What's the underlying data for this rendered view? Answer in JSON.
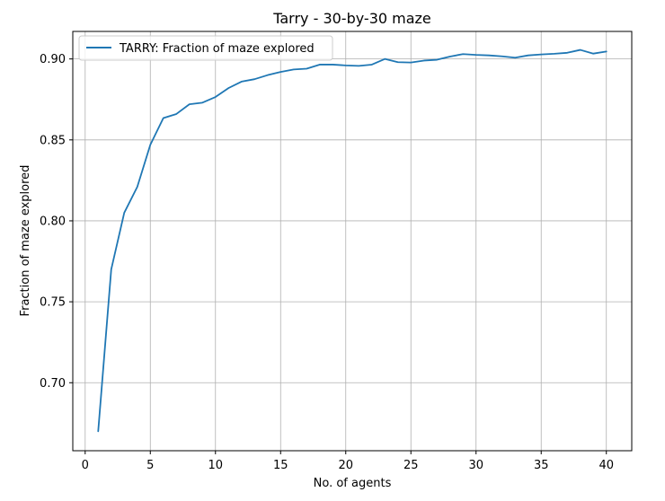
{
  "chart_data": {
    "type": "line",
    "title": "Tarry - 30-by-30 maze",
    "xlabel": "No. of agents",
    "ylabel": "Fraction of maze explored",
    "xlim": [
      -0.95,
      41.95
    ],
    "ylim": [
      0.658,
      0.917
    ],
    "xticks": [
      0,
      5,
      10,
      15,
      20,
      25,
      30,
      35,
      40
    ],
    "xtick_labels": [
      "0",
      "5",
      "10",
      "15",
      "20",
      "25",
      "30",
      "35",
      "40"
    ],
    "yticks": [
      0.7,
      0.75,
      0.8,
      0.85,
      0.9
    ],
    "ytick_labels": [
      "0.70",
      "0.75",
      "0.80",
      "0.85",
      "0.90"
    ],
    "grid": true,
    "legend_position": "upper-left",
    "series": [
      {
        "name": "TARRY: Fraction of maze explored",
        "color": "#1f77b4",
        "x": [
          1,
          2,
          3,
          4,
          5,
          6,
          7,
          8,
          9,
          10,
          11,
          12,
          13,
          14,
          15,
          16,
          17,
          18,
          19,
          20,
          21,
          22,
          23,
          24,
          25,
          26,
          27,
          28,
          29,
          30,
          31,
          32,
          33,
          34,
          35,
          36,
          37,
          38,
          39,
          40
        ],
        "y": [
          0.67,
          0.77,
          0.805,
          0.821,
          0.847,
          0.8635,
          0.866,
          0.872,
          0.873,
          0.8765,
          0.882,
          0.886,
          0.8875,
          0.89,
          0.892,
          0.8935,
          0.894,
          0.8965,
          0.8965,
          0.896,
          0.8957,
          0.8965,
          0.9,
          0.898,
          0.8978,
          0.899,
          0.8995,
          0.9015,
          0.903,
          0.9025,
          0.9022,
          0.9016,
          0.9008,
          0.9022,
          0.9028,
          0.9032,
          0.9038,
          0.9056,
          0.9033,
          0.9046
        ]
      }
    ]
  }
}
